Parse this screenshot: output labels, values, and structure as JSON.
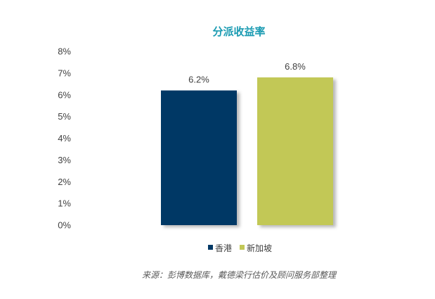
{
  "chart_data": {
    "type": "bar",
    "title": "分派收益率",
    "categories": [
      "香港",
      "新加坡"
    ],
    "values": [
      6.2,
      6.8
    ],
    "value_labels": [
      "6.2%",
      "6.8%"
    ],
    "ylim": [
      0,
      8
    ],
    "yticks": [
      0,
      1,
      2,
      3,
      4,
      5,
      6,
      7,
      8
    ],
    "ytick_labels": [
      "0%",
      "1%",
      "2%",
      "3%",
      "4%",
      "5%",
      "6%",
      "7%",
      "8%"
    ],
    "xlabel": "",
    "ylabel": "",
    "grid": false,
    "legend": {
      "placement": "bottom",
      "entries": [
        "香港",
        "新加坡"
      ]
    },
    "colors": [
      "#003865",
      "#c2c857"
    ],
    "title_color": "#1a9bb2"
  },
  "source_note": "来源：彭博数据库，戴德梁行估价及顾问服务部整理"
}
